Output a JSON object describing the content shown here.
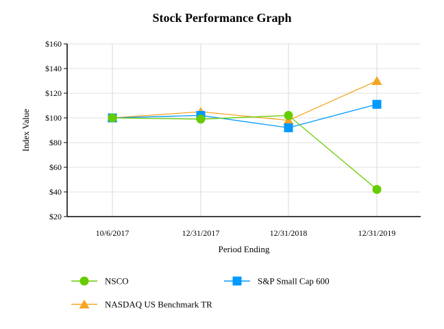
{
  "chart_data": {
    "type": "line",
    "title": "Stock Performance Graph",
    "xlabel": "Period Ending",
    "ylabel": "Index Value",
    "categories": [
      "10/6/2017",
      "12/31/2017",
      "12/31/2018",
      "12/31/2019"
    ],
    "ylim": [
      20,
      160
    ],
    "yticks": [
      "$20",
      "$40",
      "$60",
      "$80",
      "$100",
      "$120",
      "$140",
      "$160"
    ],
    "grid": true,
    "legend_position": "bottom",
    "series": [
      {
        "name": "NSCO",
        "values": [
          100,
          99,
          102,
          42
        ],
        "color": "#66cc00",
        "marker": "circle"
      },
      {
        "name": "S&P Small Cap 600",
        "values": [
          100,
          102,
          92,
          111
        ],
        "color": "#0099ff",
        "marker": "square"
      },
      {
        "name": "NASDAQ US Benchmark TR",
        "values": [
          100,
          105,
          98,
          130
        ],
        "color": "#f5a623",
        "marker": "triangle"
      }
    ]
  }
}
